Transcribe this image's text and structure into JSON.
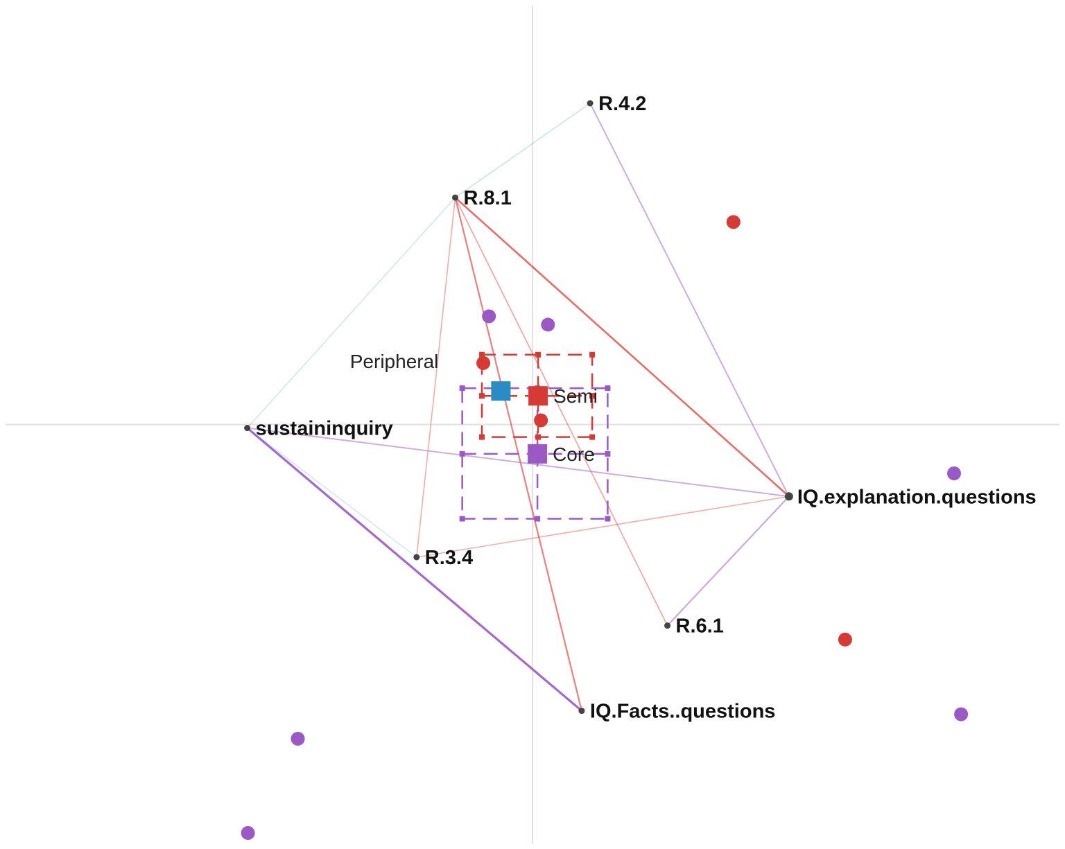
{
  "chart_data": {
    "type": "scatter",
    "title": "",
    "xlabel": "",
    "ylabel": "",
    "colors": {
      "Core": "#9b59c6",
      "Semi": "#d63a34",
      "Peripheral": "#2a8cc4",
      "axis": "#e2e2e2",
      "node": "#444444"
    },
    "nodes": [
      {
        "id": "R.4.2",
        "label": "R.4.2",
        "x": 0.82,
        "y": 4.6
      },
      {
        "id": "R.8.1",
        "label": "R.8.1",
        "x": -1.1,
        "y": 3.25
      },
      {
        "id": "sustaininquiry",
        "label": "sustaininquiry",
        "x": -4.06,
        "y": -0.05
      },
      {
        "id": "IQ.explanation.questions",
        "label": "IQ.explanation.questions",
        "x": 3.65,
        "y": -1.03
      },
      {
        "id": "R.3.4",
        "label": "R.3.4",
        "x": -1.65,
        "y": -1.9
      },
      {
        "id": "R.6.1",
        "label": "R.6.1",
        "x": 1.92,
        "y": -2.88
      },
      {
        "id": "IQ.Facts..questions",
        "label": "IQ.Facts..questions",
        "x": 0.7,
        "y": -4.1
      }
    ],
    "edges": [
      {
        "from": "R.8.1",
        "to": "R.4.2",
        "group": "Peripheral",
        "weight": 0.15
      },
      {
        "from": "R.8.1",
        "to": "sustaininquiry",
        "group": "Peripheral",
        "weight": 0.12
      },
      {
        "from": "R.8.1",
        "to": "IQ.explanation.questions",
        "group": "Semi",
        "weight": 0.75
      },
      {
        "from": "R.8.1",
        "to": "IQ.Facts..questions",
        "group": "Semi",
        "weight": 0.6
      },
      {
        "from": "R.8.1",
        "to": "R.3.4",
        "group": "Semi",
        "weight": 0.3
      },
      {
        "from": "R.8.1",
        "to": "R.6.1",
        "group": "Semi",
        "weight": 0.35
      },
      {
        "from": "R.4.2",
        "to": "IQ.explanation.questions",
        "group": "Core",
        "weight": 0.45
      },
      {
        "from": "sustaininquiry",
        "to": "IQ.explanation.questions",
        "group": "Core",
        "weight": 0.45
      },
      {
        "from": "sustaininquiry",
        "to": "IQ.Facts..questions",
        "group": "Core",
        "weight": 1.0
      },
      {
        "from": "sustaininquiry",
        "to": "R.3.4",
        "group": "Peripheral",
        "weight": 0.1
      },
      {
        "from": "IQ.explanation.questions",
        "to": "R.6.1",
        "group": "Core",
        "weight": 0.5
      },
      {
        "from": "IQ.explanation.questions",
        "to": "R.3.4",
        "group": "Semi",
        "weight": 0.3
      }
    ],
    "groups": [
      {
        "name": "Core",
        "label": "Core",
        "centroid": {
          "x": 0.07,
          "y": -0.42
        },
        "interval": {
          "x": [
            -1.0,
            1.07
          ],
          "y": [
            -1.35,
            0.52
          ]
        },
        "points": [
          {
            "x": -0.62,
            "y": 1.55
          },
          {
            "x": 0.22,
            "y": 1.43
          },
          {
            "x": 6.0,
            "y": -0.7
          },
          {
            "x": 6.1,
            "y": -4.15
          },
          {
            "x": -3.34,
            "y": -4.5
          },
          {
            "x": -4.05,
            "y": -5.85
          }
        ]
      },
      {
        "name": "Semi",
        "label": "Semi",
        "centroid": {
          "x": 0.08,
          "y": 0.41
        },
        "interval": {
          "x": [
            -0.72,
            0.85
          ],
          "y": [
            -0.18,
            1.0
          ]
        },
        "points": [
          {
            "x": 2.86,
            "y": 2.9
          },
          {
            "x": -0.7,
            "y": 0.88
          },
          {
            "x": 0.12,
            "y": 0.06
          },
          {
            "x": 4.45,
            "y": -3.08
          }
        ]
      },
      {
        "name": "Peripheral",
        "label": "Peripheral",
        "centroid": {
          "x": -0.45,
          "y": 0.48
        },
        "interval": null,
        "points": []
      }
    ],
    "xlim": [
      -7.5,
      7.5
    ],
    "ylim": [
      -6.0,
      6.0
    ],
    "grid": false,
    "axes_through_origin": true,
    "legend": "none"
  }
}
